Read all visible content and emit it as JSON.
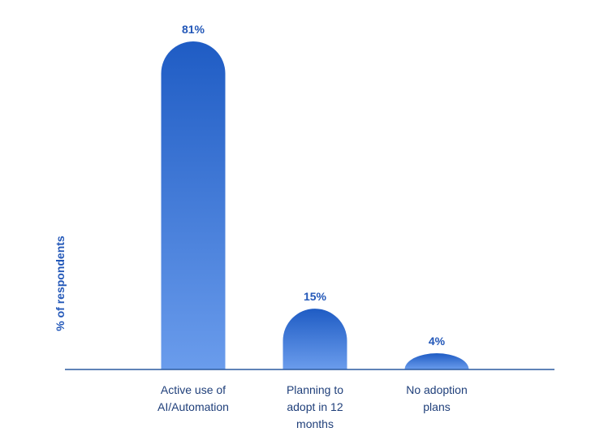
{
  "chart_data": {
    "type": "bar",
    "title": "",
    "xlabel": "",
    "ylabel": "% of respondents",
    "categories": [
      [
        "Active use of",
        "AI/Automation"
      ],
      [
        "Planning to",
        "adopt in 12",
        "months"
      ],
      [
        "No adoption",
        "plans"
      ]
    ],
    "values": [
      81,
      15,
      4
    ],
    "data_labels": [
      "81%",
      "15%",
      "4%"
    ],
    "ylim": [
      0,
      85
    ],
    "grid": false,
    "legend": "none",
    "colors": {
      "bar_top": "#1f5cc4",
      "bar_bottom": "#6a9cec",
      "label": "#2257b8",
      "axis": "#2a5aa0",
      "category_text": "#1f3f7a"
    }
  }
}
